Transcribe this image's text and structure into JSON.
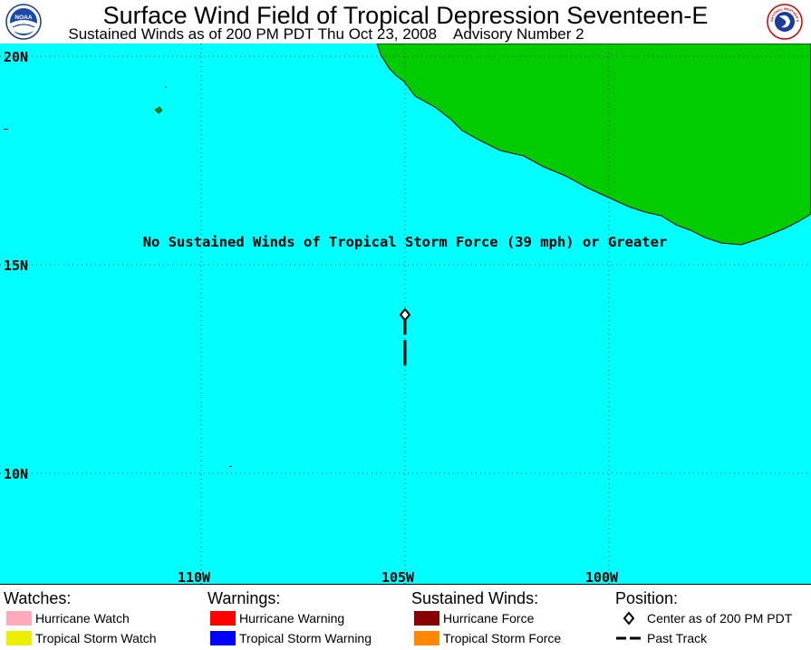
{
  "header": {
    "title": "Surface Wind Field of Tropical Depression Seventeen-E",
    "subtitle_time": "Sustained Winds as of 200 PM PDT Thu Oct 23, 2008",
    "subtitle_advisory": "Advisory Number 2",
    "noaa_logo_text": "NOAA",
    "nws_logo_text": "NATIONAL WEATHER SERVICE"
  },
  "map": {
    "ocean_color": "#00ffff",
    "land_color": "#00cc00",
    "lat_labels": [
      "20N",
      "15N",
      "10N"
    ],
    "lon_labels": [
      "110W",
      "105W",
      "100W"
    ],
    "message": "No Sustained Winds of Tropical Storm Force (39 mph) or Greater",
    "storm_center": {
      "lat": 13.8,
      "lon": -105.0
    },
    "past_track": [
      {
        "lat": 13.1,
        "lon": -105.0
      },
      {
        "lat": 12.7,
        "lon": -105.0
      }
    ]
  },
  "legend": {
    "watches": {
      "heading": "Watches:",
      "items": [
        {
          "label": "Hurricane Watch",
          "color": "#ffaabb"
        },
        {
          "label": "Tropical Storm Watch",
          "color": "#eeee00"
        }
      ]
    },
    "warnings": {
      "heading": "Warnings:",
      "items": [
        {
          "label": "Hurricane Warning",
          "color": "#ff0000"
        },
        {
          "label": "Tropical Storm Warning",
          "color": "#0000ff"
        }
      ]
    },
    "winds": {
      "heading": "Sustained Winds:",
      "items": [
        {
          "label": "Hurricane Force",
          "color": "#880000"
        },
        {
          "label": "Tropical Storm Force",
          "color": "#ff8800"
        }
      ]
    },
    "position": {
      "heading": "Position:",
      "items": [
        {
          "label": "Center as of 200 PM PDT",
          "icon": "diamond-icon"
        },
        {
          "label": "Past Track",
          "icon": "dashed-line-icon"
        }
      ]
    }
  }
}
